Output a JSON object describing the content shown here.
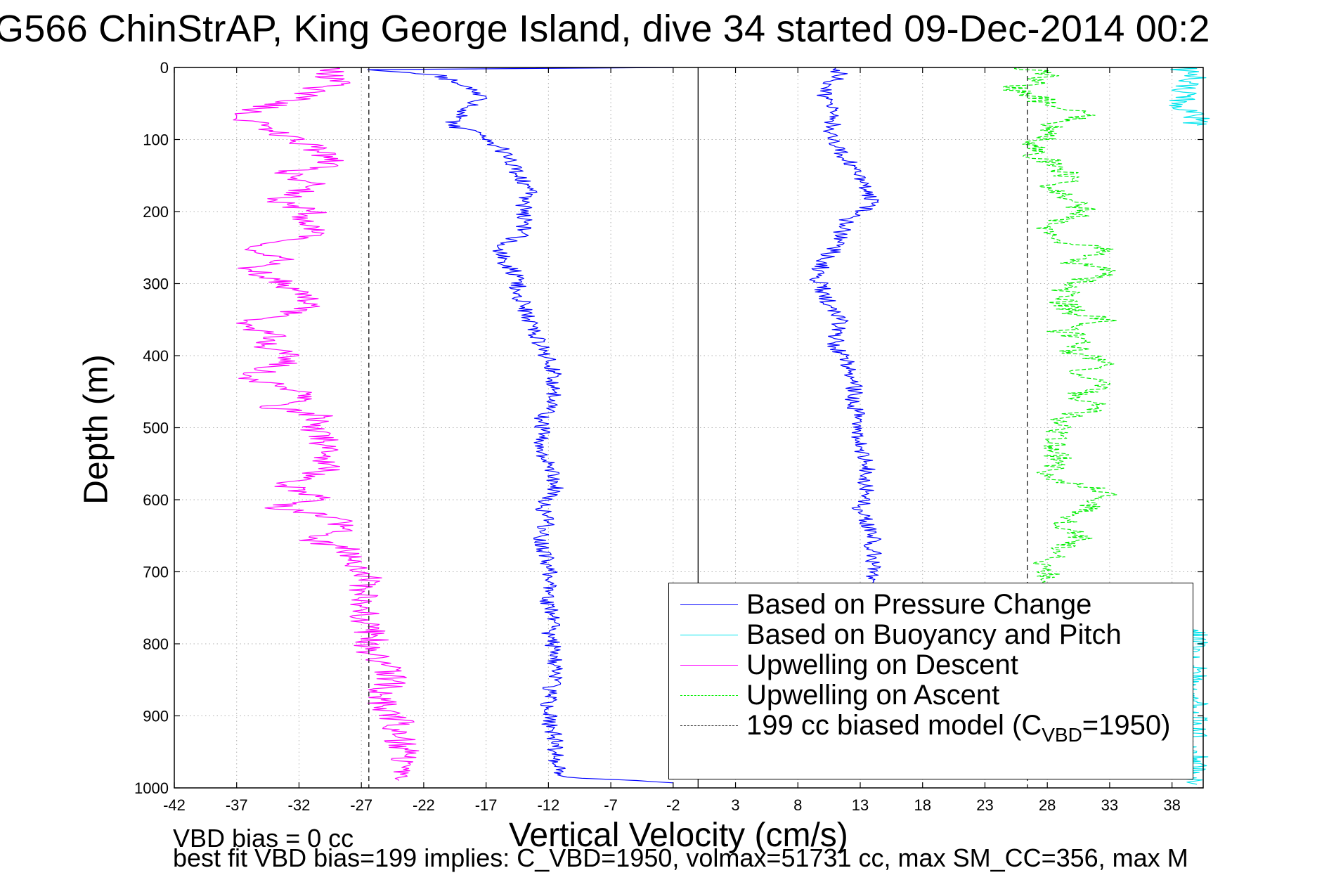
{
  "figure": {
    "title": "G566 ChinStrAP, King George Island, dive 34 started 09-Dec-2014 00:2",
    "footnote_line1": "VBD bias = 0 cc",
    "footnote_line2": "best fit VBD bias=199 implies: C_VBD=1950, volmax=51731 cc, max SM_CC=356, max M"
  },
  "chart_data": {
    "type": "line",
    "xlabel": "Vertical Velocity (cm/s)",
    "ylabel": "Depth (m)",
    "xlim": [
      -42,
      40.5
    ],
    "ylim": [
      0,
      1000
    ],
    "y_reversed": true,
    "grid": true,
    "legend_position": "bottom-right",
    "x_ticks": [
      -42,
      -37,
      -32,
      -27,
      -22,
      -17,
      -12,
      -7,
      -2,
      3,
      8,
      13,
      18,
      23,
      28,
      33,
      38
    ],
    "y_ticks": [
      0,
      100,
      200,
      300,
      400,
      500,
      600,
      700,
      800,
      900,
      1000
    ],
    "vertical_lines": [
      {
        "x": 0,
        "style": "solid",
        "color": "#000000"
      },
      {
        "x": -26.4,
        "style": "dashed",
        "color": "#000000"
      },
      {
        "x": 26.4,
        "style": "dashed",
        "color": "#000000"
      }
    ],
    "legend": [
      {
        "label": "Based on Pressure Change",
        "color": "#0000ff",
        "style": "solid"
      },
      {
        "label": "Based on Buoyancy and Pitch",
        "color": "#00e5ee",
        "style": "solid"
      },
      {
        "label": "Upwelling on Descent",
        "color": "#ff00ff",
        "style": "solid"
      },
      {
        "label": "Upwelling on Ascent",
        "color": "#00ee00",
        "style": "dashed"
      },
      {
        "label_prefix": "199 cc biased model (C",
        "label_sub": "VBD",
        "label_suffix": "=1950)",
        "color": "#333333",
        "style": "dashed"
      }
    ],
    "series": [
      {
        "name": "Based on Pressure Change",
        "color": "#0000ff",
        "style": "solid",
        "profiles": [
          {
            "phase": "descent",
            "depth": [
              0,
              3,
              10,
              25,
              40,
              55,
              70,
              80,
              95,
              110,
              130,
              150,
              170,
              190,
              210,
              230,
              250,
              270,
              290,
              310,
              330,
              350,
              370,
              390,
              410,
              430,
              450,
              470,
              490,
              510,
              530,
              550,
              570,
              590,
              610,
              630,
              650,
              670,
              690,
              710,
              730,
              750,
              770,
              790,
              810,
              830,
              850,
              870,
              890,
              910,
              930,
              950,
              970,
              985,
              993
            ],
            "velocity": [
              -2,
              -26.5,
              -21,
              -19,
              -17,
              -18.5,
              -19,
              -20,
              -17,
              -16,
              -15,
              -14.5,
              -13.5,
              -14,
              -14,
              -14,
              -16,
              -15.5,
              -14.5,
              -14.5,
              -14,
              -13.5,
              -13,
              -12.5,
              -12,
              -11.5,
              -11.5,
              -12,
              -12.5,
              -12.5,
              -12.5,
              -12,
              -11.5,
              -11.5,
              -12.5,
              -12,
              -12.5,
              -12.5,
              -12,
              -12,
              -12,
              -12,
              -11.5,
              -12,
              -11.5,
              -11.5,
              -11.5,
              -12,
              -12,
              -12,
              -11.5,
              -11.5,
              -11.5,
              -10.5,
              -2
            ]
          },
          {
            "phase": "ascent",
            "depth": [
              0,
              10,
              25,
              40,
              55,
              70,
              90,
              110,
              130,
              150,
              170,
              190,
              210,
              230,
              250,
              270,
              290,
              310,
              330,
              350,
              370,
              390,
              410,
              430,
              450,
              470,
              490,
              510,
              530,
              550,
              570,
              590,
              610,
              630,
              650,
              670,
              690,
              715
            ],
            "velocity": [
              11,
              11.5,
              10.5,
              10,
              10.5,
              11,
              10.5,
              11,
              12,
              13,
              13.5,
              14,
              12,
              11.5,
              11,
              10,
              9.5,
              10,
              10.5,
              11.5,
              11,
              11,
              12,
              12.5,
              12.5,
              12.5,
              13,
              13,
              13,
              13.5,
              13.5,
              13.5,
              13,
              13.5,
              14,
              14,
              14,
              14
            ]
          }
        ]
      },
      {
        "name": "Based on Buoyancy and Pitch",
        "color": "#00e5ee",
        "style": "solid",
        "profiles": [
          {
            "phase": "ascent",
            "depth": [
              0,
              10,
              20,
              30,
              40,
              50,
              60,
              80
            ],
            "velocity": [
              38.5,
              40,
              39.5,
              38.5,
              39.5,
              38,
              40,
              40
            ]
          },
          {
            "phase": "bottom",
            "depth": [
              780,
              800,
              820,
              840,
              860,
              880,
              900,
              920,
              940,
              960,
              980,
              995
            ],
            "velocity": [
              39.5,
              40,
              39,
              40,
              39,
              40,
              39.5,
              40,
              39,
              40,
              39.5,
              40
            ]
          }
        ]
      },
      {
        "name": "Upwelling on Descent",
        "color": "#ff00ff",
        "style": "solid",
        "profiles": [
          {
            "phase": "descent",
            "depth": [
              0,
              10,
              20,
              30,
              45,
              60,
              70,
              80,
              95,
              110,
              125,
              135,
              145,
              160,
              175,
              185,
              200,
              215,
              230,
              250,
              265,
              280,
              295,
              310,
              330,
              345,
              355,
              370,
              385,
              400,
              415,
              430,
              445,
              460,
              470,
              485,
              500,
              520,
              540,
              560,
              580,
              600,
              610,
              625,
              640,
              655,
              670,
              690,
              710,
              730,
              750,
              770,
              790,
              810,
              830,
              850,
              870,
              890,
              910,
              930,
              950,
              970,
              990
            ],
            "velocity": [
              -29,
              -30,
              -28,
              -31,
              -32,
              -36,
              -37,
              -35,
              -33,
              -31,
              -30,
              -29,
              -33,
              -31,
              -32,
              -34,
              -31,
              -32,
              -30,
              -36,
              -33,
              -36,
              -34,
              -32,
              -31,
              -33,
              -37,
              -34,
              -35,
              -32,
              -34,
              -36,
              -33,
              -31,
              -35,
              -30,
              -31,
              -30,
              -29.5,
              -30,
              -33,
              -30,
              -34,
              -29,
              -28.5,
              -31,
              -28,
              -28,
              -26.5,
              -27,
              -26.5,
              -27,
              -26,
              -26.5,
              -25,
              -24.5,
              -25.5,
              -25,
              -24,
              -24,
              -23.5,
              -23.5,
              -24
            ]
          }
        ]
      },
      {
        "name": "Upwelling on Ascent",
        "color": "#00ee00",
        "style": "dashed",
        "profiles": [
          {
            "phase": "ascent",
            "depth": [
              0,
              10,
              20,
              30,
              40,
              50,
              65,
              75,
              90,
              105,
              120,
              140,
              155,
              170,
              185,
              200,
              220,
              240,
              255,
              270,
              285,
              300,
              320,
              340,
              350,
              365,
              380,
              395,
              410,
              425,
              440,
              455,
              470,
              490,
              510,
              530,
              550,
              570,
              590,
              605,
              620,
              640,
              655,
              670,
              690,
              715
            ],
            "velocity": [
              26,
              28,
              27,
              25,
              27,
              28,
              31,
              29,
              28,
              27,
              27,
              29,
              30,
              28,
              30,
              31,
              28,
              29,
              33,
              30,
              33,
              30,
              29,
              30,
              33,
              29,
              31,
              30,
              33,
              30,
              33,
              30,
              32,
              29,
              29,
              29,
              29,
              28,
              33,
              32,
              30,
              29,
              31,
              29,
              28,
              27.5
            ]
          }
        ]
      },
      {
        "name": "199 cc biased model (CVBD=1950)",
        "color": "#333333",
        "style": "dashed",
        "profiles": [
          {
            "phase": "descent",
            "depth": [
              0,
              1000
            ],
            "velocity": [
              -26.4,
              -26.4
            ]
          },
          {
            "phase": "ascent",
            "depth": [
              0,
              1000
            ],
            "velocity": [
              26.4,
              26.4
            ]
          }
        ]
      }
    ]
  }
}
